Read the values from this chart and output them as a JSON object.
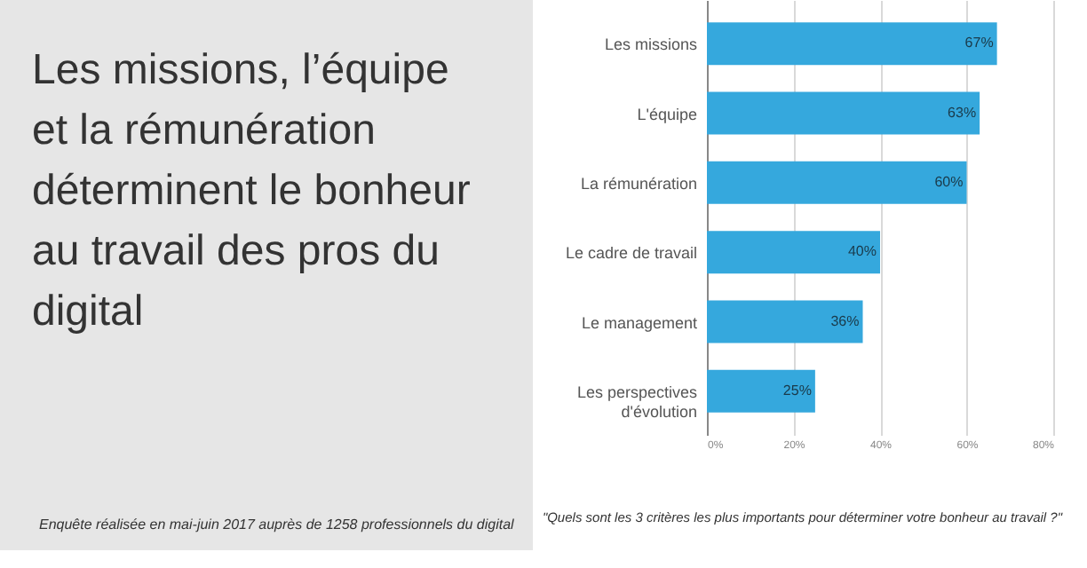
{
  "chart_data": {
    "type": "bar",
    "orientation": "horizontal",
    "title": "Les missions, l’équipe et la rémunération déterminent le bonheur au travail des pros du digital",
    "categories": [
      "Les missions",
      "L'équipe",
      "La rémunération",
      "Le cadre de travail",
      "Le management",
      "Les perspectives d'évolution"
    ],
    "values": [
      67,
      63,
      60,
      40,
      36,
      25
    ],
    "value_labels": [
      "67%",
      "63%",
      "60%",
      "40%",
      "36%",
      "25%"
    ],
    "color": "#35a8dd",
    "xlim": [
      0,
      80
    ],
    "xticks": [
      {
        "value": 0,
        "label": "0%"
      },
      {
        "value": 20,
        "label": "20%"
      },
      {
        "value": 40,
        "label": "40%"
      },
      {
        "value": 60,
        "label": "60%"
      },
      {
        "value": 80,
        "label": "80%"
      }
    ],
    "grid": "x",
    "annotations": [
      "Enquête réalisée en mai-juin 2017 auprès de 1258 professionnels du digital",
      "\"Quels sont les 3 critères les plus importants pour déterminer votre bonheur au travail ?\""
    ]
  }
}
